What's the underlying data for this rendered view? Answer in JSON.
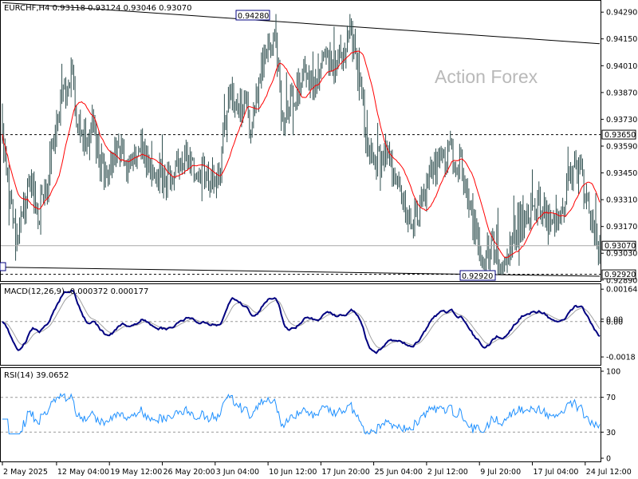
{
  "watermark": "Action Forex",
  "main_panel": {
    "header": "EURCHF,H4  0.93118 0.93124 0.93046 0.93070",
    "y_ticks": [
      "0.94290",
      "0.94150",
      "0.94010",
      "0.93870",
      "0.93730",
      "0.93590",
      "0.93450",
      "0.93310",
      "0.93170",
      "0.93030",
      "0.92890"
    ],
    "y_tick_values": [
      0.9429,
      0.9415,
      0.9401,
      0.9387,
      0.9373,
      0.9359,
      0.9345,
      0.9331,
      0.9317,
      0.9303,
      0.9289
    ],
    "current_price_label": "0.93070",
    "level_high_label": "0.93650",
    "level_low_label": "0.92920",
    "high_annotation": "0.94280",
    "low_annotation": "0.92920",
    "ylim": [
      0.92885,
      0.94345
    ],
    "colors": {
      "bars": "#2f4f4f",
      "ma": "#ff0000",
      "trendline": "#000000"
    }
  },
  "macd_panel": {
    "header": "MACD(12,26,9) -0.000372 0.000177",
    "y_ticks": [
      "0.001648",
      "0.00",
      "0.00",
      "-0.0018"
    ],
    "y_tick_values": [
      0.001648,
      0.00012,
      0.0,
      -0.0018
    ],
    "ylim": [
      -0.0022,
      0.0019
    ],
    "colors": {
      "macd": "#000080",
      "signal": "#a0a0a0"
    }
  },
  "rsi_panel": {
    "header": "RSI(14) 39.0652",
    "y_ticks": [
      "100",
      "70",
      "30",
      "0"
    ],
    "y_tick_values": [
      100,
      70,
      30,
      0
    ],
    "ylim": [
      0,
      100
    ],
    "colors": {
      "rsi": "#1e90ff"
    }
  },
  "x_axis": {
    "labels": [
      "2 May 2025",
      "12 May 04:00",
      "19 May 12:00",
      "26 May 20:00",
      "3 Jun 04:00",
      "10 Jun 12:00",
      "17 Jun 20:00",
      "25 Jun 04:00",
      "2 Jul 12:00",
      "9 Jul 20:00",
      "17 Jul 04:00",
      "24 Jul 12:00"
    ],
    "label_bar_index": [
      0,
      41,
      81,
      121,
      161,
      201,
      241,
      281,
      321,
      361,
      401,
      441
    ]
  },
  "chart_data": {
    "type": "ohlc",
    "title": "EURCHF,H4",
    "bar_count": 453,
    "series": [
      {
        "name": "EURCHF,H4",
        "kind": "ohlc",
        "last": {
          "open": 0.93118,
          "high": 0.93124,
          "low": 0.93046,
          "close": 0.9307
        }
      },
      {
        "name": "MACD(12,26,9)",
        "values_last": [
          -0.000372,
          0.000177
        ]
      },
      {
        "name": "RSI(14)",
        "value_last": 39.0652
      }
    ],
    "close_keypoints": [
      [
        0,
        0.9363
      ],
      [
        5,
        0.9335
      ],
      [
        12,
        0.9312
      ],
      [
        20,
        0.934
      ],
      [
        28,
        0.9325
      ],
      [
        35,
        0.9345
      ],
      [
        45,
        0.9385
      ],
      [
        52,
        0.9395
      ],
      [
        60,
        0.936
      ],
      [
        68,
        0.937
      ],
      [
        78,
        0.934
      ],
      [
        86,
        0.9355
      ],
      [
        95,
        0.935
      ],
      [
        105,
        0.936
      ],
      [
        115,
        0.9345
      ],
      [
        125,
        0.934
      ],
      [
        135,
        0.9355
      ],
      [
        145,
        0.935
      ],
      [
        155,
        0.9342
      ],
      [
        165,
        0.9345
      ],
      [
        172,
        0.939
      ],
      [
        180,
        0.938
      ],
      [
        190,
        0.937
      ],
      [
        198,
        0.941
      ],
      [
        206,
        0.942
      ],
      [
        212,
        0.937
      ],
      [
        220,
        0.9385
      ],
      [
        228,
        0.9395
      ],
      [
        236,
        0.939
      ],
      [
        244,
        0.9405
      ],
      [
        252,
        0.94
      ],
      [
        258,
        0.941
      ],
      [
        264,
        0.942
      ],
      [
        270,
        0.9395
      ],
      [
        276,
        0.936
      ],
      [
        282,
        0.935
      ],
      [
        290,
        0.9355
      ],
      [
        298,
        0.934
      ],
      [
        306,
        0.9325
      ],
      [
        314,
        0.932
      ],
      [
        322,
        0.934
      ],
      [
        330,
        0.935
      ],
      [
        338,
        0.9355
      ],
      [
        346,
        0.935
      ],
      [
        352,
        0.9335
      ],
      [
        358,
        0.931
      ],
      [
        366,
        0.93
      ],
      [
        372,
        0.931
      ],
      [
        378,
        0.9295
      ],
      [
        384,
        0.9305
      ],
      [
        390,
        0.932
      ],
      [
        398,
        0.9325
      ],
      [
        406,
        0.933
      ],
      [
        414,
        0.932
      ],
      [
        420,
        0.9315
      ],
      [
        426,
        0.933
      ],
      [
        432,
        0.935
      ],
      [
        438,
        0.9345
      ],
      [
        444,
        0.9325
      ],
      [
        448,
        0.931
      ],
      [
        452,
        0.9307
      ]
    ],
    "main_ylim": [
      0.92885,
      0.94345
    ],
    "annotated_high": 0.9428,
    "annotated_low": 0.9292,
    "horizontal_levels": [
      0.9365,
      0.9292
    ],
    "trendlines": [
      {
        "from": [
          0,
          0.9434
        ],
        "to": [
          452,
          0.94125
        ]
      },
      {
        "from": [
          0,
          0.92957
        ],
        "to": [
          452,
          0.9291
        ]
      }
    ],
    "macd_range": [
      -0.0018,
      0.001648
    ],
    "rsi_levels": [
      70,
      30
    ]
  }
}
